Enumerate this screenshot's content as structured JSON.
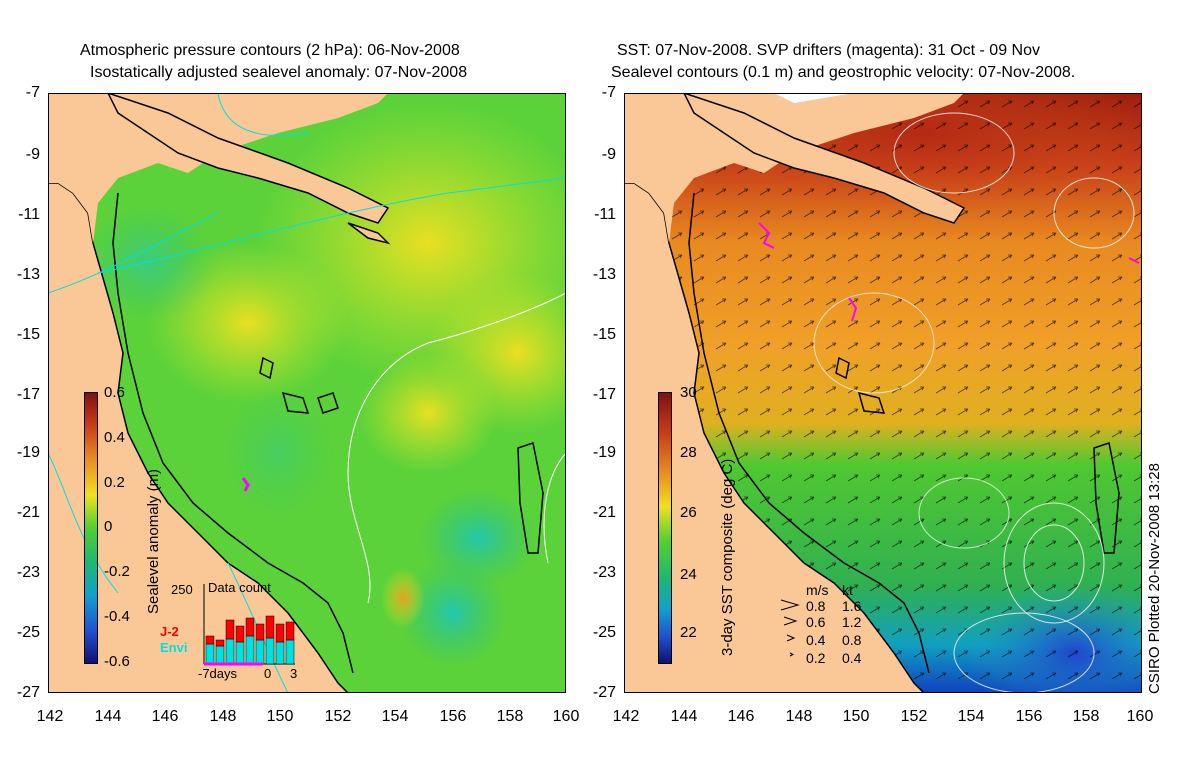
{
  "left_panel": {
    "title_line1": "Atmospheric pressure contours (2 hPa): 06-Nov-2008",
    "title_line2": "Isostatically adjusted sealevel anomaly: 07-Nov-2008",
    "colorbar_label": "Sealevel anomaly (m)",
    "colorbar_ticks": [
      "0.6",
      "0.4",
      "0.2",
      "0",
      "-0.2",
      "-0.4",
      "-0.6"
    ],
    "histogram": {
      "title": "Data count",
      "ymax_label": "250",
      "series_a": "J-2",
      "series_b": "Envi",
      "xlabel_left": "-7days",
      "xlabel_mid": "0",
      "xlabel_right": "3",
      "colors": {
        "series_a": "#ff0000",
        "series_b": "#00e0e0"
      }
    }
  },
  "right_panel": {
    "title_line1": "SST: 07-Nov-2008. SVP drifters (magenta): 31 Oct - 09 Nov",
    "title_line2": "Sealevel contours (0.1 m) and geostrophic velocity: 07-Nov-2008.",
    "colorbar_label": "3-day SST composite (deg C)",
    "colorbar_ticks": [
      "30",
      "28",
      "26",
      "24",
      "22"
    ],
    "velocity_legend": {
      "header_ms": "m/s",
      "header_kt": "kt",
      "rows": [
        {
          "ms": "0.8",
          "kt": "1.6"
        },
        {
          "ms": "0.6",
          "kt": "1.2"
        },
        {
          "ms": "0.4",
          "kt": "0.8"
        },
        {
          "ms": "0.2",
          "kt": "0.4"
        }
      ]
    }
  },
  "axes": {
    "yticks": [
      "-7",
      "-9",
      "-11",
      "-13",
      "-15",
      "-17",
      "-19",
      "-21",
      "-23",
      "-25",
      "-27"
    ],
    "xticks": [
      "142",
      "144",
      "146",
      "148",
      "150",
      "152",
      "154",
      "156",
      "158",
      "160"
    ]
  },
  "credit": "CSIRO Plotted 20-Nov-2008 13:28",
  "colors": {
    "land": "#fac896",
    "sea_green": "#5cd23a",
    "sst_red": "#b42814",
    "sst_orange": "#f0a028",
    "drifter": "#ff00ff"
  }
}
